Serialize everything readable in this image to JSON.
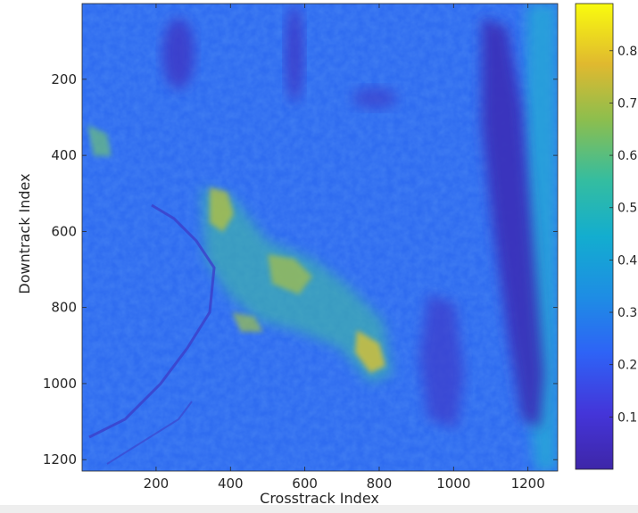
{
  "chart_data": {
    "type": "heatmap",
    "title": "",
    "xlabel": "Crosstrack Index",
    "ylabel": "Downtrack Index",
    "xlim": [
      1,
      1280
    ],
    "ylim": [
      1,
      1230
    ],
    "y_direction": "reversed",
    "x_ticks": [
      200,
      400,
      600,
      800,
      1000,
      1200
    ],
    "y_ticks": [
      200,
      400,
      600,
      800,
      1000,
      1200
    ],
    "colorbar": {
      "colormap": "parula",
      "clim": [
        0.0,
        0.89
      ],
      "ticks": [
        0.1,
        0.2,
        0.3,
        0.4,
        0.5,
        0.6,
        0.7,
        0.8
      ],
      "tick_labels": [
        "0.1",
        "0.2",
        "0.3",
        "0.4",
        "0.5",
        "0.6",
        "0.7",
        "0.8"
      ]
    },
    "typical_values": {
      "background": 0.25,
      "dark_band_right": 0.08,
      "bright_diagonal_region": 0.55,
      "right_edge_strip": 0.38
    },
    "colors": {
      "low": "#3e26a8",
      "mid_low": "#2e87f7",
      "mid": "#20b8b2",
      "mid_high": "#bcbe37",
      "high": "#f9fb0e"
    }
  }
}
